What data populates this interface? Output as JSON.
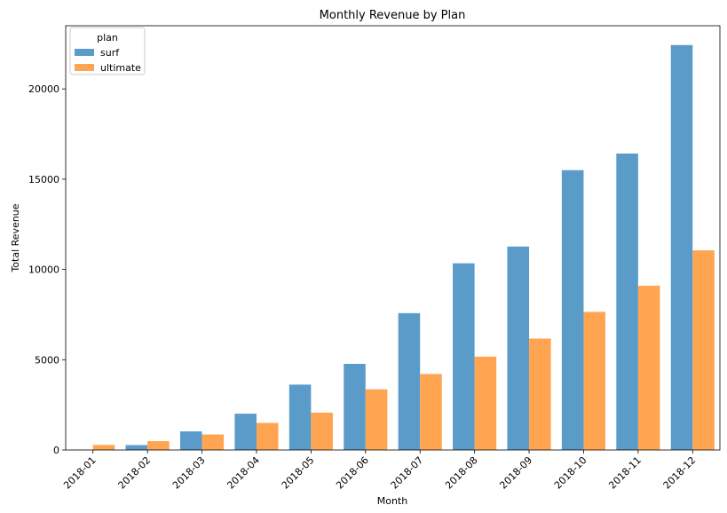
{
  "chart_data": {
    "type": "bar",
    "title": "Monthly Revenue by Plan",
    "xlabel": "Month",
    "ylabel": "Total Revenue",
    "categories": [
      "2018-01",
      "2018-02",
      "2018-03",
      "2018-04",
      "2018-05",
      "2018-06",
      "2018-07",
      "2018-08",
      "2018-09",
      "2018-10",
      "2018-11",
      "2018-12"
    ],
    "series": [
      {
        "name": "surf",
        "color": "#5b9bc9",
        "values": [
          20,
          270,
          1030,
          2010,
          3620,
          4770,
          7580,
          10340,
          11270,
          15500,
          16420,
          22430
        ]
      },
      {
        "name": "ultimate",
        "color": "#ffa552",
        "values": [
          280,
          490,
          860,
          1500,
          2070,
          3360,
          4210,
          5170,
          6170,
          7650,
          9100,
          11060
        ]
      }
    ],
    "ylim": [
      0,
      23500
    ],
    "yticks": [
      0,
      5000,
      10000,
      15000,
      20000
    ],
    "grid": false,
    "legend": {
      "title": "plan",
      "position": "top-left"
    }
  }
}
